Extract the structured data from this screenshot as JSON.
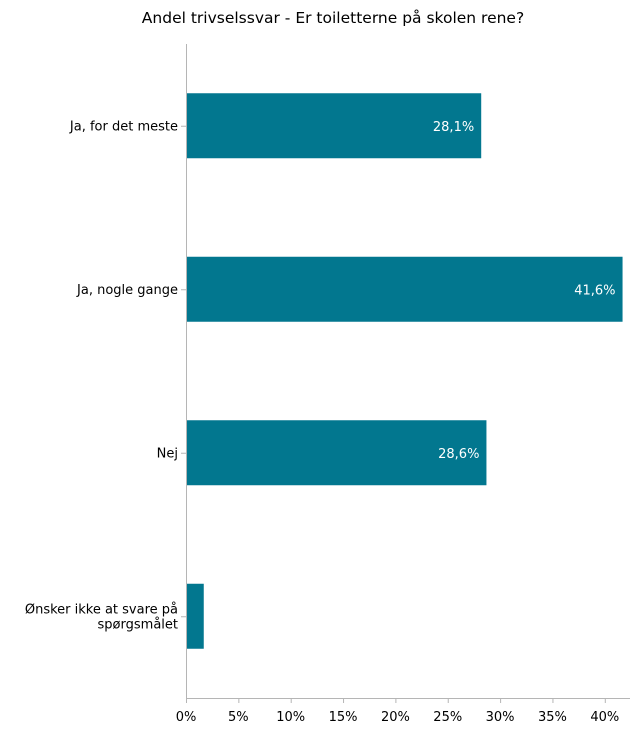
{
  "chart_data": {
    "type": "bar",
    "orientation": "horizontal",
    "title": "Andel trivselssvar - Er toiletterne på skolen rene?",
    "categories": [
      "Ja, for det meste",
      "Ja, nogle gange",
      "Nej",
      "Ønsker ikke at svare på spørgsmålet"
    ],
    "category_lines": [
      [
        "Ja, for det meste"
      ],
      [
        "Ja, nogle gange"
      ],
      [
        "Nej"
      ],
      [
        "Ønsker ikke at svare på",
        "spørgsmålet"
      ]
    ],
    "values": [
      28.1,
      41.6,
      28.6,
      1.6
    ],
    "value_labels": [
      "28,1%",
      "41,6%",
      "28,6%",
      ""
    ],
    "xlim": [
      0,
      42
    ],
    "x_ticks": [
      0,
      5,
      10,
      15,
      20,
      25,
      30,
      35,
      40
    ],
    "x_tick_labels": [
      "0%",
      "5%",
      "10%",
      "15%",
      "20%",
      "25%",
      "30%",
      "35%",
      "40%"
    ],
    "xlabel": "",
    "ylabel": "",
    "grid": false,
    "legend": "none",
    "bar_color": "#02778f"
  }
}
